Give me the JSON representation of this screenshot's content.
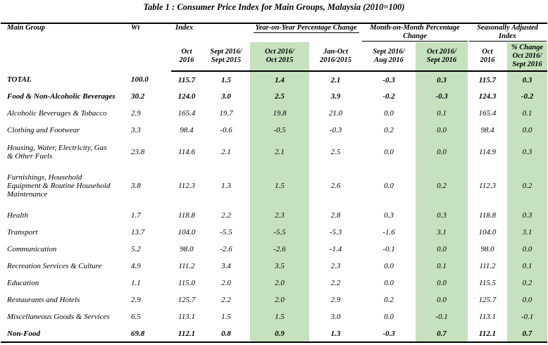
{
  "title": "Table 1 : Consumer Price Index for Main Groups, Malaysia (2010=100)",
  "headers": {
    "main_group": "Main Group",
    "wt": "Wt",
    "index": "Index",
    "yoy": "Year-on-Year Percentage Change",
    "mom": "Month-on-Month Percentage Change",
    "sa": "Seasonally Adjusted Index"
  },
  "subheaders": [
    {
      "l1": "Oct",
      "l2": "2016"
    },
    {
      "l1": "Sept 2016/",
      "l2": "Sept 2015"
    },
    {
      "l1": "Oct 2016/",
      "l2": "Oct 2015"
    },
    {
      "l1": "Jan-Oct",
      "l2": "2016/2015"
    },
    {
      "l1": "Sept 2016/",
      "l2": "Aug 2016"
    },
    {
      "l1": "Oct 2016/",
      "l2": "Sept 2016"
    },
    {
      "l1": "Oct",
      "l2": "2016"
    },
    {
      "l1": "% Change",
      "l2": "Oct 2016/",
      "l3": "Sept 2016"
    }
  ],
  "rows": [
    {
      "group": "TOTAL",
      "bold": true,
      "values": [
        "100.0",
        "115.7",
        "1.5",
        "1.4",
        "2.1",
        "-0.3",
        "0.3",
        "115.7",
        "0.3"
      ]
    },
    {
      "group": "Food & Non-Alcoholic Beverages",
      "bold": true,
      "values": [
        "30.2",
        "124.0",
        "3.0",
        "2.5",
        "3.9",
        "-0.2",
        "-0.3",
        "124.3",
        "-0.2"
      ]
    },
    {
      "group": "Alcoholic Beverages & Tobacco",
      "values": [
        "2.9",
        "165.4",
        "19.7",
        "19.8",
        "21.0",
        "0.0",
        "0.1",
        "165.4",
        "0.1"
      ]
    },
    {
      "group": "Clothing and Footwear",
      "values": [
        "3.3",
        "98.4",
        "-0.6",
        "-0.5",
        "-0.3",
        "0.2",
        "0.0",
        "98.4",
        "0.0"
      ]
    },
    {
      "group": "Housing, Water, Electricity, Gas & Other Fuels",
      "values": [
        "23.8",
        "114.6",
        "2.1",
        "2.1",
        "2.5",
        "0.0",
        "0.0",
        "114.9",
        "0.3"
      ]
    },
    {
      "group": "Furnishings, Household Equipment & Routine Household Maintenance",
      "values": [
        "3.8",
        "112.3",
        "1.3",
        "1.5",
        "2.6",
        "0.0",
        "0.2",
        "112.3",
        "0.2"
      ]
    },
    {
      "group": "Health",
      "values": [
        "1.7",
        "118.8",
        "2.2",
        "2.3",
        "2.8",
        "0.3",
        "0.3",
        "118.8",
        "0.3"
      ]
    },
    {
      "group": "Transport",
      "values": [
        "13.7",
        "104.0",
        "-5.5",
        "-5.5",
        "-5.3",
        "-1.6",
        "3.1",
        "104.0",
        "3.1"
      ]
    },
    {
      "group": "Communication",
      "values": [
        "5.2",
        "98.0",
        "-2.6",
        "-2.6",
        "-1.4",
        "-0.1",
        "0.0",
        "98.0",
        "0.0"
      ]
    },
    {
      "group": "Recreation Services & Culture",
      "values": [
        "4.9",
        "111.2",
        "3.4",
        "3.5",
        "2.3",
        "0.0",
        "0.1",
        "111.2",
        "0.1"
      ]
    },
    {
      "group": "Education",
      "values": [
        "1.1",
        "115.0",
        "2.0",
        "2.0",
        "2.2",
        "0.0",
        "0.0",
        "115.5",
        "0.2"
      ]
    },
    {
      "group": "Restaurants and Hotels",
      "values": [
        "2.9",
        "125.7",
        "2.2",
        "2.0",
        "2.9",
        "0.2",
        "0.0",
        "125.7",
        "0.0"
      ]
    },
    {
      "group": "Miscellaneous Goods & Services",
      "values": [
        "6.5",
        "113.1",
        "1.5",
        "1.5",
        "3.0",
        "0.0",
        "-0.1",
        "113.1",
        "-0.1"
      ]
    },
    {
      "group": "Non-Food",
      "bold": true,
      "values": [
        "69.8",
        "112.1",
        "0.8",
        "0.9",
        "1.3",
        "-0.3",
        "0.7",
        "112.1",
        "0.7"
      ]
    }
  ]
}
